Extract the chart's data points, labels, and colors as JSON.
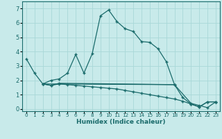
{
  "xlabel": "Humidex (Indice chaleur)",
  "bg_color": "#c8eaea",
  "grid_color": "#a8d8d8",
  "line_color": "#1a6b6b",
  "xlim": [
    -0.5,
    23.5
  ],
  "ylim": [
    -0.15,
    7.5
  ],
  "xticks": [
    0,
    1,
    2,
    3,
    4,
    5,
    6,
    7,
    8,
    9,
    10,
    11,
    12,
    13,
    14,
    15,
    16,
    17,
    18,
    19,
    20,
    21,
    22,
    23
  ],
  "yticks": [
    0,
    1,
    2,
    3,
    4,
    5,
    6,
    7
  ],
  "series1_x": [
    0,
    1,
    2,
    3,
    4,
    5,
    6,
    7,
    8,
    9,
    10,
    11,
    12,
    13,
    14,
    15,
    16,
    17,
    18,
    19,
    20,
    21,
    22,
    23
  ],
  "series1_y": [
    3.5,
    2.5,
    1.75,
    2.0,
    2.1,
    2.5,
    3.8,
    2.5,
    3.85,
    6.5,
    6.9,
    6.1,
    5.6,
    5.4,
    4.7,
    4.65,
    4.2,
    3.3,
    1.7,
    0.8,
    0.35,
    0.15,
    0.5,
    0.5
  ],
  "series2_x": [
    2,
    3,
    4,
    5,
    6,
    7,
    8,
    9,
    10,
    11,
    12,
    13,
    14,
    15,
    16,
    17,
    18,
    19,
    20,
    21,
    22,
    23
  ],
  "series2_y": [
    1.75,
    1.65,
    1.75,
    1.7,
    1.65,
    1.6,
    1.55,
    1.5,
    1.45,
    1.4,
    1.3,
    1.2,
    1.1,
    1.0,
    0.9,
    0.8,
    0.7,
    0.55,
    0.35,
    0.15,
    0.5,
    0.5
  ],
  "series3_x": [
    2,
    3,
    4,
    18,
    20,
    21,
    22,
    23
  ],
  "series3_y": [
    1.75,
    1.65,
    1.8,
    1.7,
    0.4,
    0.25,
    0.1,
    0.5
  ],
  "flat_line_x": [
    2,
    18
  ],
  "flat_line_y": [
    1.75,
    1.7
  ]
}
